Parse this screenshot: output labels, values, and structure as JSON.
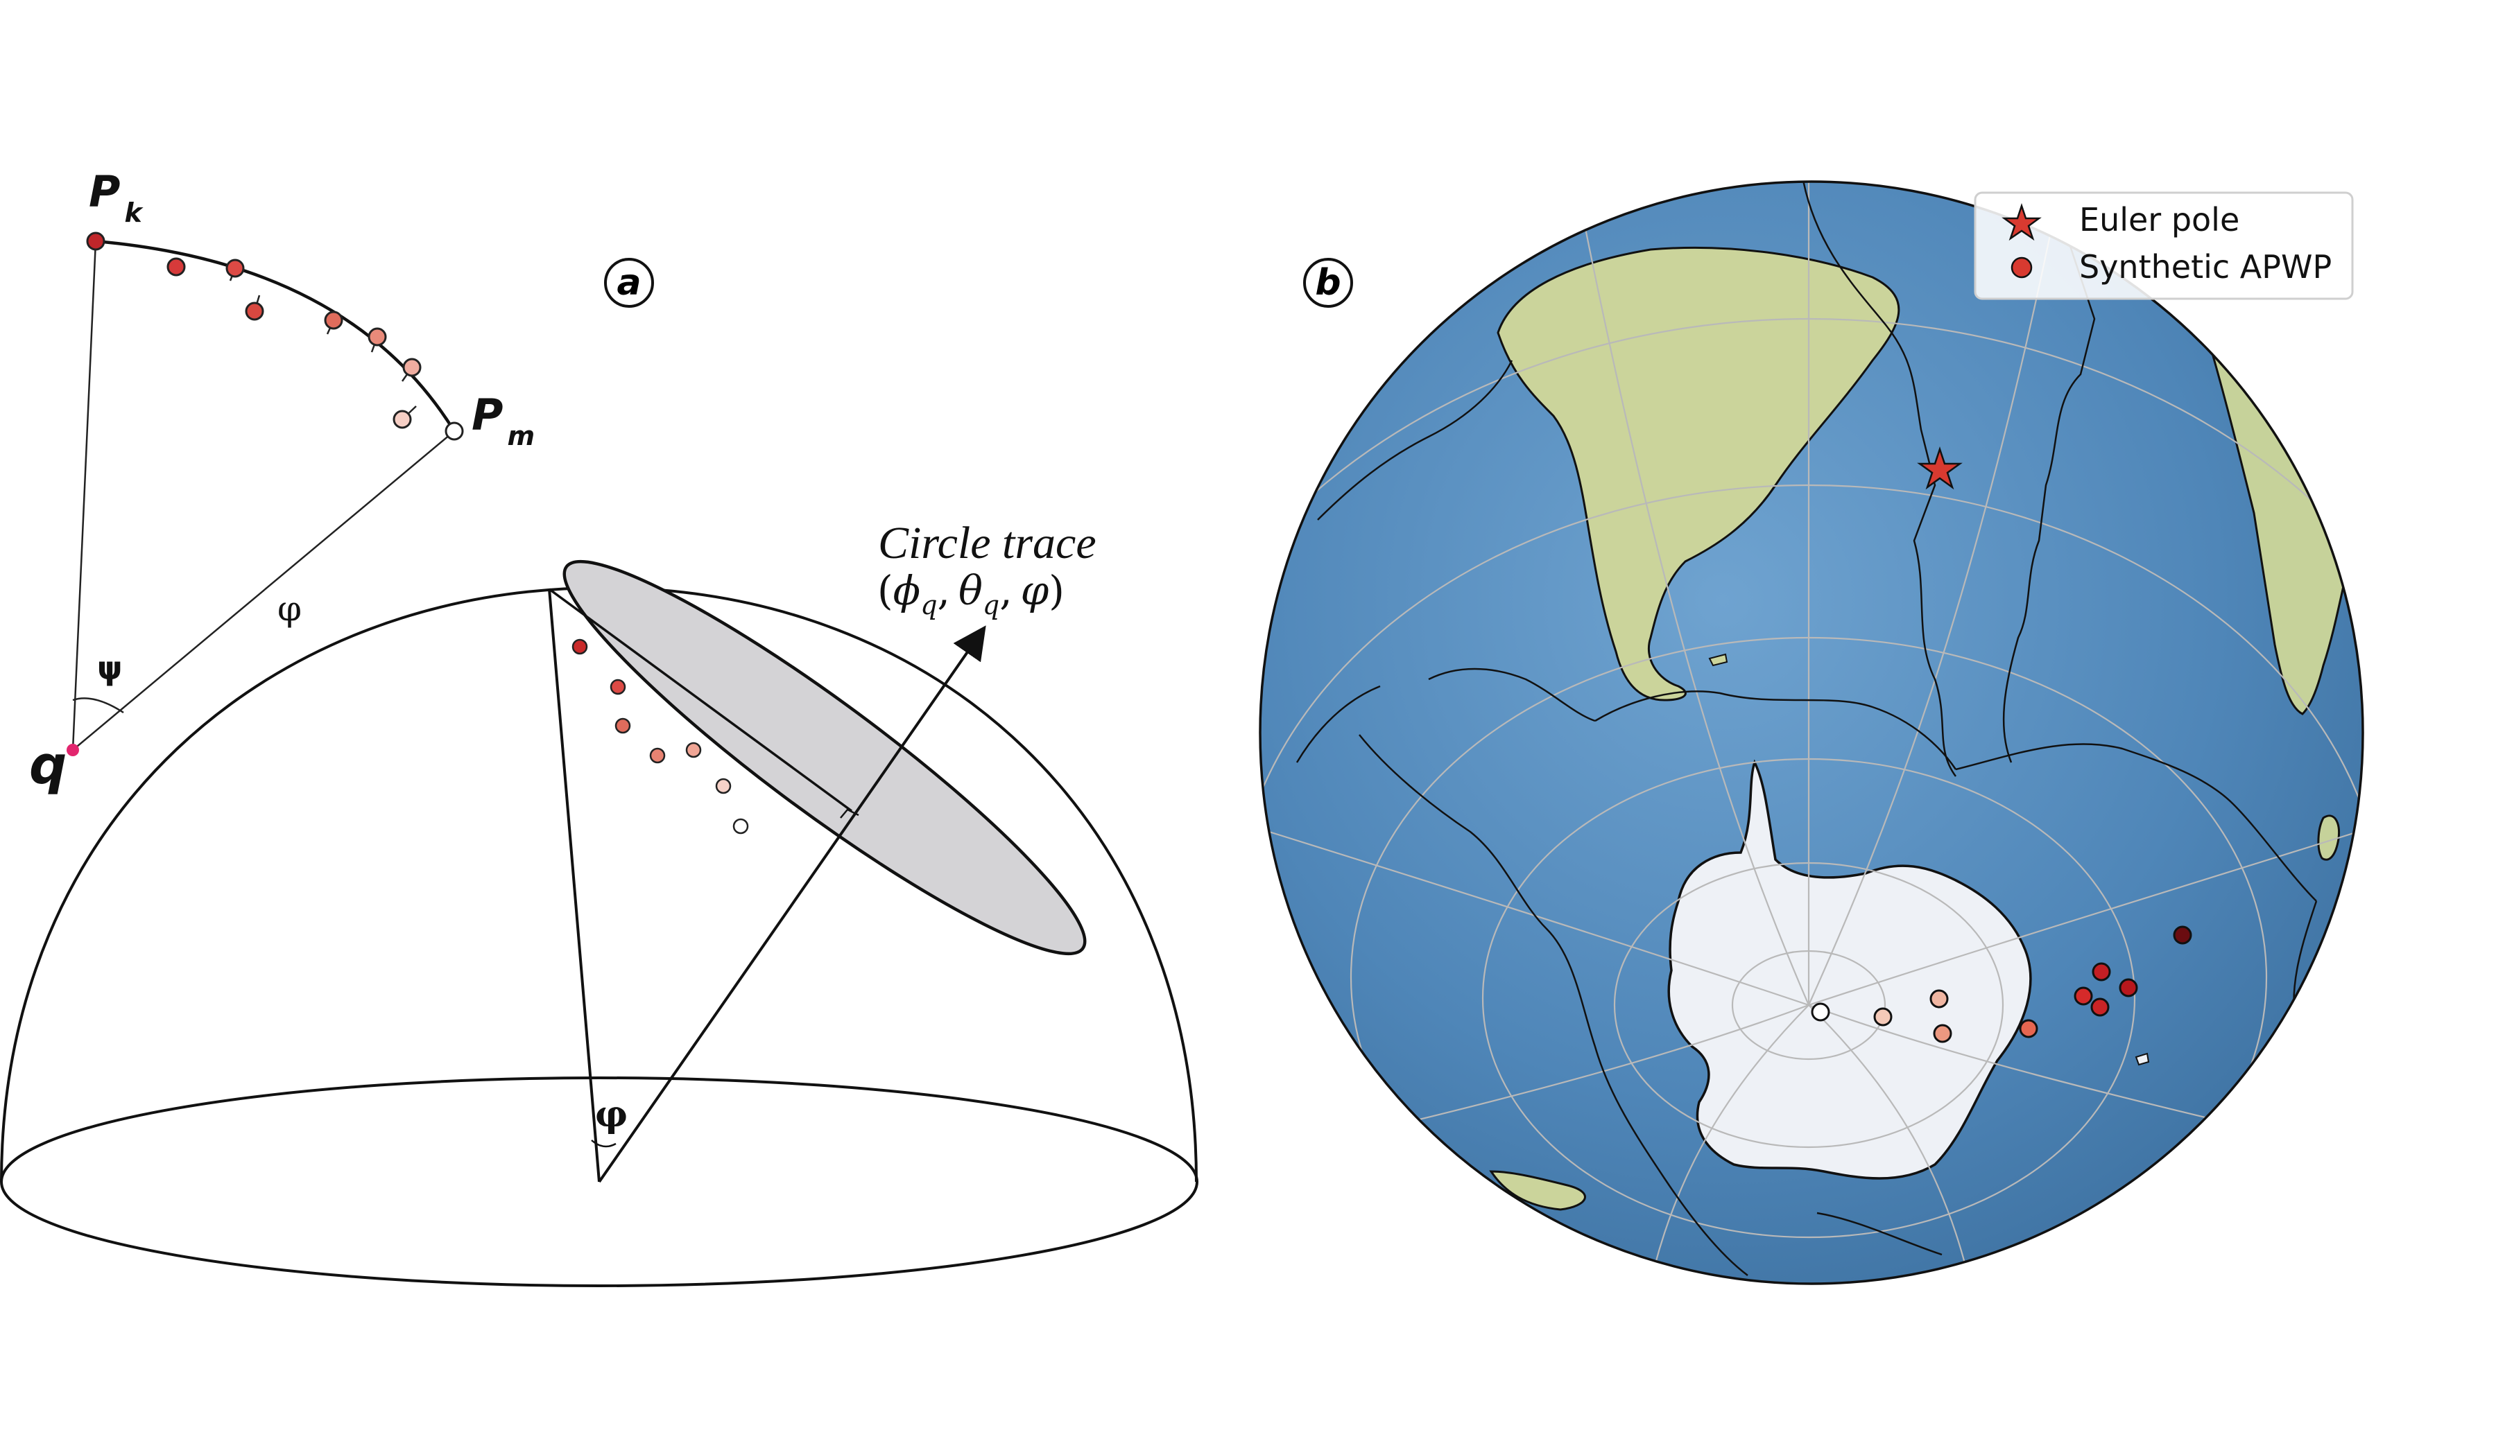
{
  "panel_a": {
    "label": "a",
    "point_k": "P",
    "point_k_sub": "k",
    "point_m": "P",
    "point_m_sub": "m",
    "point_q": "q",
    "angle_psi": "ψ",
    "angle_varphi": "φ",
    "angle_varphi_bold": "φ",
    "circle_trace_title": "Circle trace",
    "circle_trace_formula": "(ϕq, θq, φ)",
    "formula_open": "(",
    "formula_phi": "ϕ",
    "formula_theta": "θ",
    "formula_sub_q": "q",
    "formula_comma": ",",
    "formula_varphi": "φ",
    "formula_close": ")"
  },
  "panel_b": {
    "label": "b",
    "legend": {
      "items": [
        {
          "label": "Euler pole",
          "marker": "star"
        },
        {
          "label": "Synthetic APWP",
          "marker": "circle"
        }
      ]
    }
  },
  "colors": {
    "ocean": "#4f86b8",
    "land": "#c9d49a",
    "ice": "#eef1f6",
    "marker_dark": "#5a0a0a",
    "marker_red": "#d42c2c",
    "marker_light": "#f2b8a8",
    "q_point": "#e2256e",
    "cap_fill": "#d4d3d6"
  }
}
